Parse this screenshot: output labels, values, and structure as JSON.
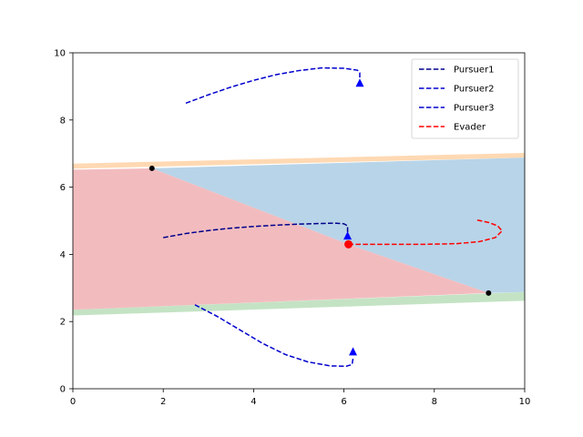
{
  "chart_data": {
    "type": "line",
    "title": "",
    "xlabel": "",
    "ylabel": "",
    "xlim": [
      0,
      10
    ],
    "ylim": [
      0,
      10
    ],
    "xticks": [
      "0",
      "2",
      "4",
      "6",
      "8",
      "10"
    ],
    "yticks": [
      "0",
      "2",
      "4",
      "6",
      "8",
      "10"
    ],
    "grid": false,
    "legend_position": "top-right",
    "regions": [
      {
        "color": "#ffd9b3",
        "points": [
          [
            0,
            6.55
          ],
          [
            10,
            6.88
          ],
          [
            10,
            7.02
          ],
          [
            0,
            6.7
          ]
        ]
      },
      {
        "color": "#c4e3c4",
        "points": [
          [
            0,
            2.18
          ],
          [
            10,
            2.62
          ],
          [
            10,
            2.88
          ],
          [
            0,
            2.35
          ]
        ]
      },
      {
        "color": "#b8d4e8",
        "points": [
          [
            1.75,
            6.56
          ],
          [
            10,
            6.88
          ],
          [
            10,
            2.88
          ],
          [
            9.2,
            2.85
          ],
          [
            6.1,
            4.3
          ]
        ]
      },
      {
        "color": "#f2bcbf",
        "points": [
          [
            0,
            6.52
          ],
          [
            1.75,
            6.56
          ],
          [
            6.1,
            4.3
          ],
          [
            9.2,
            2.85
          ],
          [
            0,
            2.35
          ]
        ]
      }
    ],
    "vertices": [
      {
        "x": 1.75,
        "y": 6.56,
        "color": "#000000"
      },
      {
        "x": 9.2,
        "y": 2.85,
        "color": "#000000"
      }
    ],
    "series": [
      {
        "name": "Pursuer1",
        "color": "#00008b",
        "dash": "dashed",
        "points": [
          [
            2.0,
            4.5
          ],
          [
            2.5,
            4.62
          ],
          [
            3.0,
            4.71
          ],
          [
            3.5,
            4.78
          ],
          [
            4.0,
            4.83
          ],
          [
            4.5,
            4.87
          ],
          [
            5.0,
            4.9
          ],
          [
            5.5,
            4.92
          ],
          [
            5.8,
            4.93
          ],
          [
            6.0,
            4.91
          ],
          [
            6.08,
            4.85
          ],
          [
            6.08,
            4.6
          ]
        ],
        "marker": {
          "x": 6.08,
          "y": 4.55,
          "shape": "triangle"
        }
      },
      {
        "name": "Pursuer2",
        "color": "#0000cd",
        "dash": "dashed",
        "points": [
          [
            2.7,
            2.5
          ],
          [
            3.2,
            2.15
          ],
          [
            3.7,
            1.75
          ],
          [
            4.2,
            1.35
          ],
          [
            4.7,
            1.02
          ],
          [
            5.2,
            0.8
          ],
          [
            5.7,
            0.68
          ],
          [
            6.05,
            0.67
          ],
          [
            6.18,
            0.72
          ],
          [
            6.2,
            0.9
          ]
        ],
        "marker": {
          "x": 6.2,
          "y": 1.1,
          "shape": "triangle"
        }
      },
      {
        "name": "Pursuer3",
        "color": "#0000cd",
        "dash": "dashed",
        "points": [
          [
            2.5,
            8.5
          ],
          [
            3.0,
            8.75
          ],
          [
            3.5,
            8.98
          ],
          [
            4.0,
            9.18
          ],
          [
            4.5,
            9.35
          ],
          [
            5.0,
            9.47
          ],
          [
            5.5,
            9.55
          ],
          [
            6.0,
            9.54
          ],
          [
            6.3,
            9.48
          ],
          [
            6.35,
            9.4
          ],
          [
            6.35,
            9.25
          ]
        ],
        "marker": {
          "x": 6.35,
          "y": 9.1,
          "shape": "triangle"
        }
      },
      {
        "name": "Evader",
        "color": "#ff0000",
        "dash": "dashed",
        "points": [
          [
            6.1,
            4.3
          ],
          [
            7.0,
            4.3
          ],
          [
            7.8,
            4.3
          ],
          [
            8.5,
            4.32
          ],
          [
            9.0,
            4.38
          ],
          [
            9.35,
            4.5
          ],
          [
            9.5,
            4.7
          ],
          [
            9.4,
            4.85
          ],
          [
            9.2,
            4.95
          ],
          [
            8.95,
            5.02
          ]
        ],
        "marker": {
          "x": 6.1,
          "y": 4.3,
          "shape": "circle"
        }
      }
    ]
  }
}
